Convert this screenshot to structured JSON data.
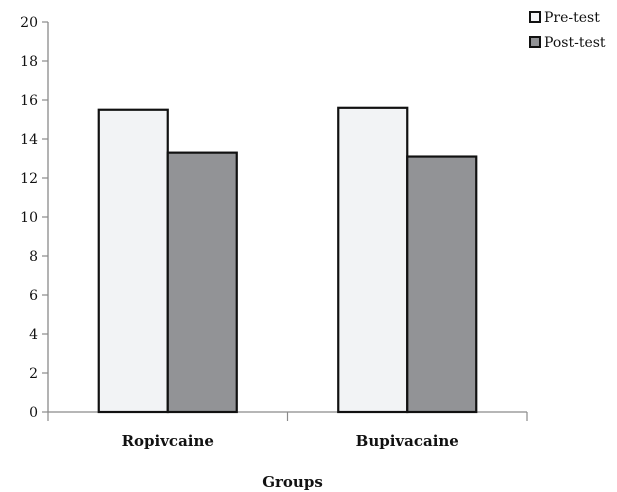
{
  "chart_data": {
    "type": "bar",
    "title": "",
    "xlabel": "Groups",
    "ylabel": "",
    "ylim": [
      0,
      20
    ],
    "yticks": [
      0,
      2,
      4,
      6,
      8,
      10,
      12,
      14,
      16,
      18,
      20
    ],
    "categories": [
      "Ropivcaine",
      "Bupivacaine"
    ],
    "series": [
      {
        "name": "Pre-test",
        "values": [
          15.5,
          15.6
        ],
        "color": "#f2f3f5"
      },
      {
        "name": "Post-test",
        "values": [
          13.3,
          13.1
        ],
        "color": "#929396"
      }
    ],
    "grid": false,
    "legend_position": "top-right"
  }
}
